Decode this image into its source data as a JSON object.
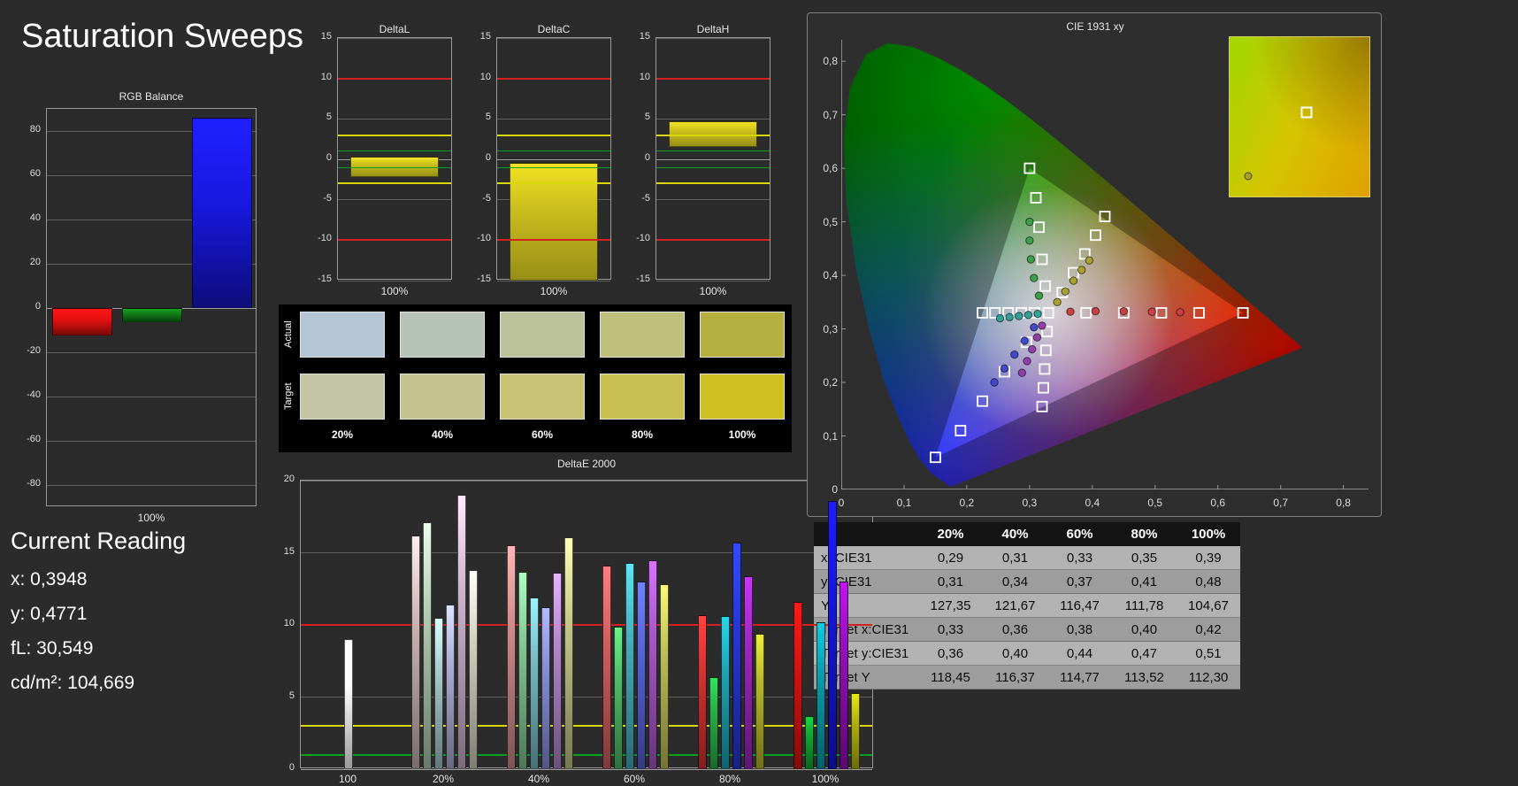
{
  "page": {
    "title": "Saturation Sweeps",
    "background": "#2b2b2b"
  },
  "current_reading": {
    "title": "Current Reading",
    "lines": [
      "x: 0,3948",
      "y: 0,4771",
      "fL: 30,549",
      "cd/m²: 104,669"
    ]
  },
  "swatch_panel": {
    "rows": [
      {
        "label": "Actual",
        "colors": [
          "#b4c5d6",
          "#b8c3b8",
          "#bcc29c",
          "#bec07c",
          "#b6b040"
        ]
      },
      {
        "label": "Target",
        "colors": [
          "#c4c5a6",
          "#c6c390",
          "#c8c274",
          "#cbc152",
          "#cfc022"
        ]
      }
    ],
    "column_labels": [
      "20%",
      "40%",
      "60%",
      "80%",
      "100%"
    ]
  },
  "table": {
    "headers": [
      "",
      "20%",
      "40%",
      "60%",
      "80%",
      "100%"
    ],
    "rows": [
      {
        "label": "x: CIE31",
        "values": [
          "0,29",
          "0,31",
          "0,33",
          "0,35",
          "0,39"
        ]
      },
      {
        "label": "y: CIE31",
        "values": [
          "0,31",
          "0,34",
          "0,37",
          "0,41",
          "0,48"
        ]
      },
      {
        "label": "Y",
        "values": [
          "127,35",
          "121,67",
          "116,47",
          "111,78",
          "104,67"
        ]
      },
      {
        "label": "Target x:CIE31",
        "values": [
          "0,33",
          "0,36",
          "0,38",
          "0,40",
          "0,42"
        ]
      },
      {
        "label": "Target y:CIE31",
        "values": [
          "0,36",
          "0,40",
          "0,44",
          "0,47",
          "0,51"
        ]
      },
      {
        "label": "Target Y",
        "values": [
          "118,45",
          "116,37",
          "114,77",
          "113,52",
          "112,30"
        ]
      }
    ]
  },
  "chart_data": [
    {
      "id": "rgb_balance",
      "type": "bar",
      "title": "RGB Balance",
      "ylim": [
        -90,
        90
      ],
      "yticks": [
        80,
        60,
        40,
        20,
        0,
        -20,
        -40,
        -60,
        -80
      ],
      "categories": [
        "Red",
        "Green",
        "Blue"
      ],
      "values": [
        -12.4,
        -6.2,
        86
      ],
      "colors": [
        "#e01010",
        "#107818",
        "#1818e0"
      ],
      "xlabel": "100%"
    },
    {
      "id": "deltaL",
      "type": "range_bar",
      "title": "DeltaL",
      "ylim": [
        -15,
        15
      ],
      "yticks": [
        15,
        10,
        5,
        0,
        -5,
        -10,
        -15
      ],
      "bar": {
        "from": 0.3,
        "to": -2.2
      },
      "bar_color": "#c9bd1d",
      "xlabel": "100%",
      "ref_lines": [
        {
          "y": 10,
          "color": "#d42020"
        },
        {
          "y": -10,
          "color": "#d42020"
        },
        {
          "y": 3,
          "color": "#d8d800"
        },
        {
          "y": -3,
          "color": "#d8d800"
        },
        {
          "y": 1,
          "color": "#00a020",
          "width": 1
        },
        {
          "y": -1,
          "color": "#00a020",
          "width": 1
        }
      ]
    },
    {
      "id": "deltaC",
      "type": "range_bar",
      "title": "DeltaC",
      "ylim": [
        -15,
        15
      ],
      "yticks": [
        15,
        10,
        5,
        0,
        -5,
        -10,
        -15
      ],
      "bar": {
        "from": -0.4,
        "to": -15
      },
      "bar_color": "#c9bd1d",
      "xlabel": "100%",
      "ref_lines": [
        {
          "y": 10,
          "color": "#d42020"
        },
        {
          "y": -10,
          "color": "#d42020"
        },
        {
          "y": 3,
          "color": "#d8d800"
        },
        {
          "y": -3,
          "color": "#d8d800"
        },
        {
          "y": 1,
          "color": "#00a020",
          "width": 1
        },
        {
          "y": -1,
          "color": "#00a020",
          "width": 1
        }
      ]
    },
    {
      "id": "deltaH",
      "type": "range_bar",
      "title": "DeltaH",
      "ylim": [
        -15,
        15
      ],
      "yticks": [
        15,
        10,
        5,
        0,
        -5,
        -10,
        -15
      ],
      "bar": {
        "from": 4.7,
        "to": 1.5
      },
      "bar_color": "#c9bd1d",
      "xlabel": "100%",
      "ref_lines": [
        {
          "y": 10,
          "color": "#d42020"
        },
        {
          "y": -10,
          "color": "#d42020"
        },
        {
          "y": 3,
          "color": "#d8d800"
        },
        {
          "y": -3,
          "color": "#d8d800"
        },
        {
          "y": 1,
          "color": "#00a020",
          "width": 1
        },
        {
          "y": -1,
          "color": "#00a020",
          "width": 1
        }
      ]
    },
    {
      "id": "deltaE2000",
      "type": "grouped_bar",
      "title": "DeltaE 2000",
      "ylim": [
        0,
        20
      ],
      "yticks": [
        20,
        15,
        10,
        5,
        0
      ],
      "ref_lines": [
        {
          "y": 10,
          "color": "#d42020"
        },
        {
          "y": 3,
          "color": "#d8d800"
        },
        {
          "y": 1,
          "color": "#00a020"
        }
      ],
      "groups": [
        {
          "label": "100",
          "values": [
            9.0
          ],
          "colors": [
            "#ffffff"
          ]
        },
        {
          "label": "20%",
          "values": [
            16.2,
            17.1,
            10.5,
            11.4,
            19.0,
            13.8
          ],
          "colors": [
            "#ccb6b6",
            "#b4ccb4",
            "#a8c8cc",
            "#acaed6",
            "#ccb4cc",
            "#d2d2c0"
          ]
        },
        {
          "label": "40%",
          "values": [
            15.5,
            13.7,
            11.9,
            11.2,
            13.6,
            16.1
          ],
          "colors": [
            "#d08c8c",
            "#84c894",
            "#78bcc4",
            "#8890d8",
            "#b488cc",
            "#c8c88c"
          ]
        },
        {
          "label": "60%",
          "values": [
            14.1,
            9.9,
            14.3,
            13.0,
            14.5,
            12.8
          ],
          "colors": [
            "#d46060",
            "#50bc68",
            "#48b0bc",
            "#5864d8",
            "#a858c8",
            "#c0c05c"
          ]
        },
        {
          "label": "80%",
          "values": [
            10.7,
            6.4,
            10.6,
            15.7,
            13.4,
            9.4
          ],
          "colors": [
            "#d43434",
            "#28b048",
            "#20a4b4",
            "#2838d8",
            "#9c28c0",
            "#b8b82c"
          ]
        },
        {
          "label": "100%",
          "values": [
            11.6,
            3.7,
            10.2,
            18.6,
            13.0,
            5.3
          ],
          "colors": [
            "#d81414",
            "#10a830",
            "#0c9cac",
            "#1418dc",
            "#9410b8",
            "#b4b410"
          ]
        }
      ]
    },
    {
      "id": "cie1931",
      "type": "chromaticity",
      "title": "CIE 1931 xy",
      "xlim": [
        0,
        0.8
      ],
      "ylim": [
        0,
        0.8
      ],
      "x_ticks": [
        "0",
        "0,1",
        "0,2",
        "0,3",
        "0,4",
        "0,5",
        "0,6",
        "0,7",
        "0,8"
      ],
      "y_ticks": [
        "0",
        "0,1",
        "0,2",
        "0,3",
        "0,4",
        "0,5",
        "0,6",
        "0,7",
        "0,8"
      ],
      "triangle": [
        [
          0.64,
          0.33
        ],
        [
          0.3,
          0.6
        ],
        [
          0.15,
          0.06
        ]
      ],
      "squares": [
        [
          0.33,
          0.33
        ],
        [
          0.39,
          0.33
        ],
        [
          0.45,
          0.33
        ],
        [
          0.51,
          0.33
        ],
        [
          0.57,
          0.33
        ],
        [
          0.64,
          0.33
        ],
        [
          0.325,
          0.38
        ],
        [
          0.32,
          0.43
        ],
        [
          0.315,
          0.49
        ],
        [
          0.31,
          0.545
        ],
        [
          0.3,
          0.6
        ],
        [
          0.295,
          0.275
        ],
        [
          0.26,
          0.22
        ],
        [
          0.225,
          0.165
        ],
        [
          0.19,
          0.11
        ],
        [
          0.15,
          0.06
        ],
        [
          0.352,
          0.368
        ],
        [
          0.37,
          0.405
        ],
        [
          0.388,
          0.44
        ],
        [
          0.405,
          0.475
        ],
        [
          0.42,
          0.51
        ],
        [
          0.308,
          0.33
        ],
        [
          0.287,
          0.33
        ],
        [
          0.266,
          0.33
        ],
        [
          0.245,
          0.33
        ],
        [
          0.225,
          0.33
        ],
        [
          0.328,
          0.295
        ],
        [
          0.326,
          0.26
        ],
        [
          0.324,
          0.225
        ],
        [
          0.322,
          0.19
        ],
        [
          0.32,
          0.155
        ]
      ],
      "points": [
        [
          0.365,
          0.332,
          "#cc4040"
        ],
        [
          0.405,
          0.333,
          "#cc4040"
        ],
        [
          0.45,
          0.333,
          "#cc4040"
        ],
        [
          0.495,
          0.332,
          "#cc4040"
        ],
        [
          0.54,
          0.331,
          "#cc4040"
        ],
        [
          0.315,
          0.362,
          "#3aa04a"
        ],
        [
          0.307,
          0.395,
          "#3aa04a"
        ],
        [
          0.302,
          0.43,
          "#3aa04a"
        ],
        [
          0.3,
          0.465,
          "#3aa04a"
        ],
        [
          0.3,
          0.5,
          "#3aa04a"
        ],
        [
          0.307,
          0.303,
          "#4048cc"
        ],
        [
          0.292,
          0.278,
          "#4048cc"
        ],
        [
          0.276,
          0.252,
          "#4048cc"
        ],
        [
          0.26,
          0.226,
          "#4048cc"
        ],
        [
          0.244,
          0.2,
          "#4048cc"
        ],
        [
          0.313,
          0.328,
          "#30a098"
        ],
        [
          0.298,
          0.326,
          "#30a098"
        ],
        [
          0.283,
          0.324,
          "#30a098"
        ],
        [
          0.268,
          0.322,
          "#30a098"
        ],
        [
          0.253,
          0.32,
          "#30a098"
        ],
        [
          0.32,
          0.306,
          "#9040a8"
        ],
        [
          0.312,
          0.284,
          "#9040a8"
        ],
        [
          0.304,
          0.262,
          "#9040a8"
        ],
        [
          0.296,
          0.24,
          "#9040a8"
        ],
        [
          0.288,
          0.218,
          "#9040a8"
        ],
        [
          0.344,
          0.35,
          "#a8a030"
        ],
        [
          0.357,
          0.37,
          "#a8a030"
        ],
        [
          0.37,
          0.39,
          "#a8a030"
        ],
        [
          0.383,
          0.41,
          "#a8a030"
        ],
        [
          0.395,
          0.428,
          "#a8a030"
        ]
      ],
      "inset": {
        "square": [
          0.55,
          0.47
        ],
        "point": [
          0.13,
          0.87
        ]
      }
    }
  ]
}
